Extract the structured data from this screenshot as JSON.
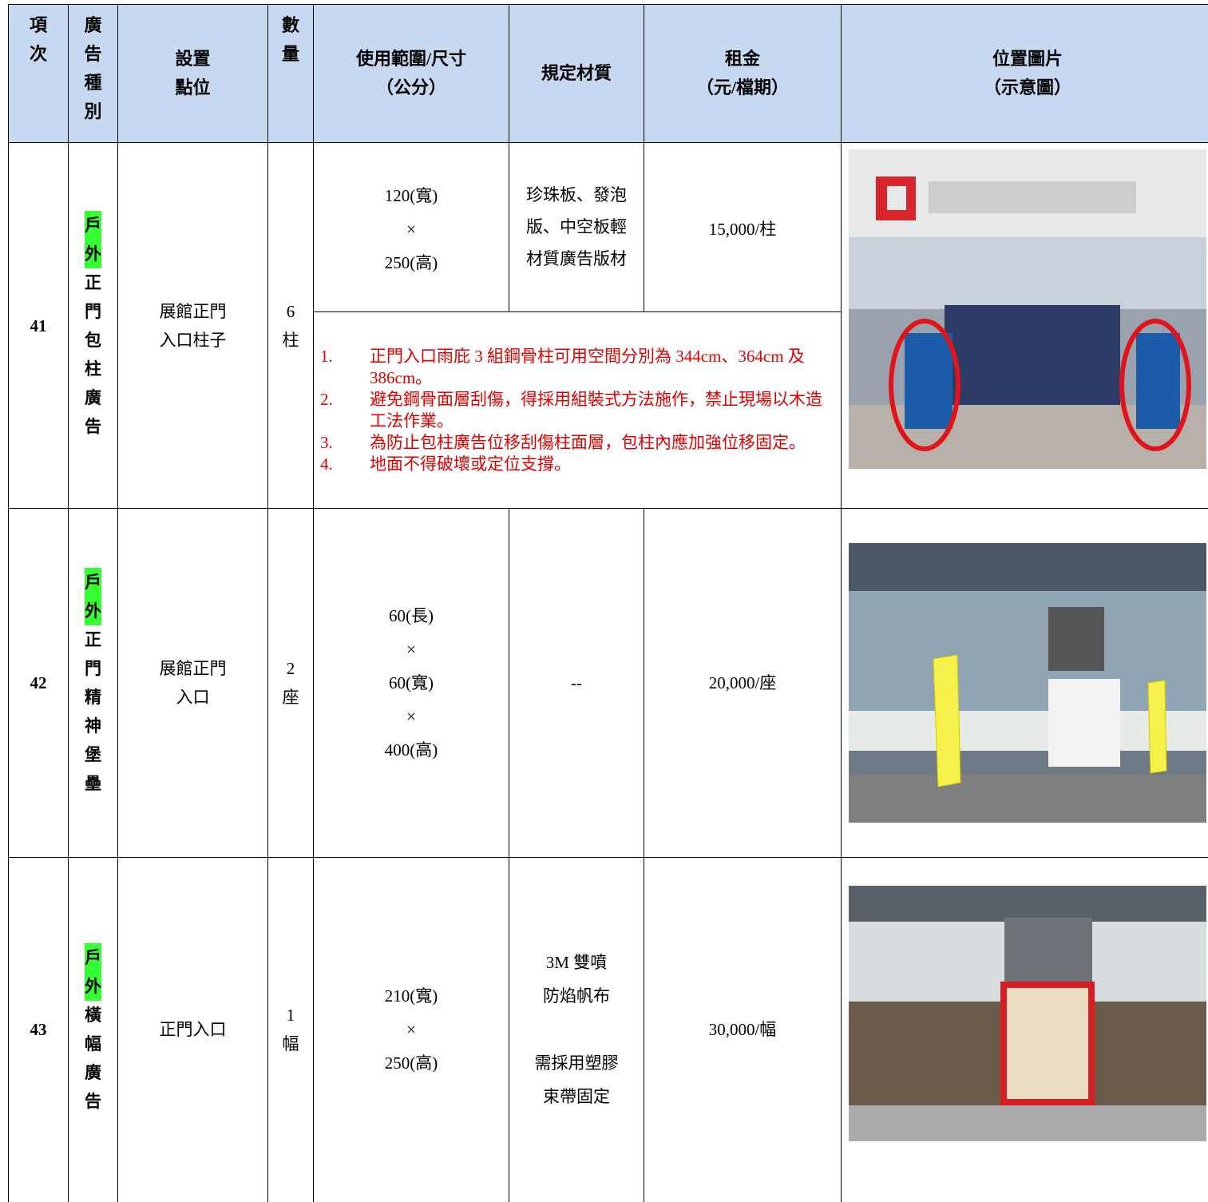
{
  "header": [
    [
      "項",
      "次"
    ],
    [
      "廣",
      "告",
      "種",
      "別"
    ],
    [
      "設置",
      "點位"
    ],
    [
      "數",
      "量"
    ],
    [
      "使用範圍/尺寸",
      "（公分）"
    ],
    [
      "規定材質"
    ],
    [
      "租金",
      "（元/檔期）"
    ],
    [
      "位置圖片",
      "（示意圖）"
    ]
  ],
  "rows": [
    {
      "item": "41",
      "type_highlight": [
        "戶",
        "外"
      ],
      "type_rest": [
        "正",
        "門",
        "包",
        "柱",
        "廣",
        "告"
      ],
      "location": [
        "展館正門",
        "入口柱子"
      ],
      "quantity": [
        "6",
        "柱"
      ],
      "size": [
        "120(寬)",
        "×",
        "250(高)"
      ],
      "material": [
        [
          "珍珠板、發泡版、中空板輕材質廣告版材"
        ]
      ],
      "rent": "15,000/柱",
      "notes": [
        {
          "num": "1.",
          "text": "正門入口雨庇 3 組鋼骨柱可用空間分別為 344cm、364cm 及 386cm。"
        },
        {
          "num": "2.",
          "text": "避免鋼骨面層刮傷，得採用組裝式方法施作，禁止現場以木造工法作業。"
        },
        {
          "num": "3.",
          "text": "為防止包柱廣告位移刮傷柱面層，包柱內應加強位移固定。"
        },
        {
          "num": "4.",
          "text": "地面不得破壞或定位支撐。"
        }
      ]
    },
    {
      "item": "42",
      "type_highlight": [
        "戶",
        "外"
      ],
      "type_rest": [
        "正",
        "門",
        "精",
        "神",
        "堡",
        "壘"
      ],
      "location": [
        "展館正門",
        "入口"
      ],
      "quantity": [
        "2",
        "座"
      ],
      "size": [
        "60(長)",
        "×",
        "60(寬)",
        "×",
        "400(高)"
      ],
      "material": [
        [
          "--"
        ]
      ],
      "rent": "20,000/座"
    },
    {
      "item": "43",
      "type_highlight": [
        "戶",
        "外"
      ],
      "type_rest": [
        "橫",
        "幅",
        "廣",
        "告"
      ],
      "location": [
        "正門入口"
      ],
      "quantity": [
        "1",
        "幅"
      ],
      "size": [
        "210(寬)",
        "×",
        "250(高)"
      ],
      "material": [
        [
          "3M 雙噴",
          "防焰帆布"
        ],
        [
          "需採用塑膠",
          "束帶固定"
        ]
      ],
      "rent": "30,000/幅"
    }
  ]
}
